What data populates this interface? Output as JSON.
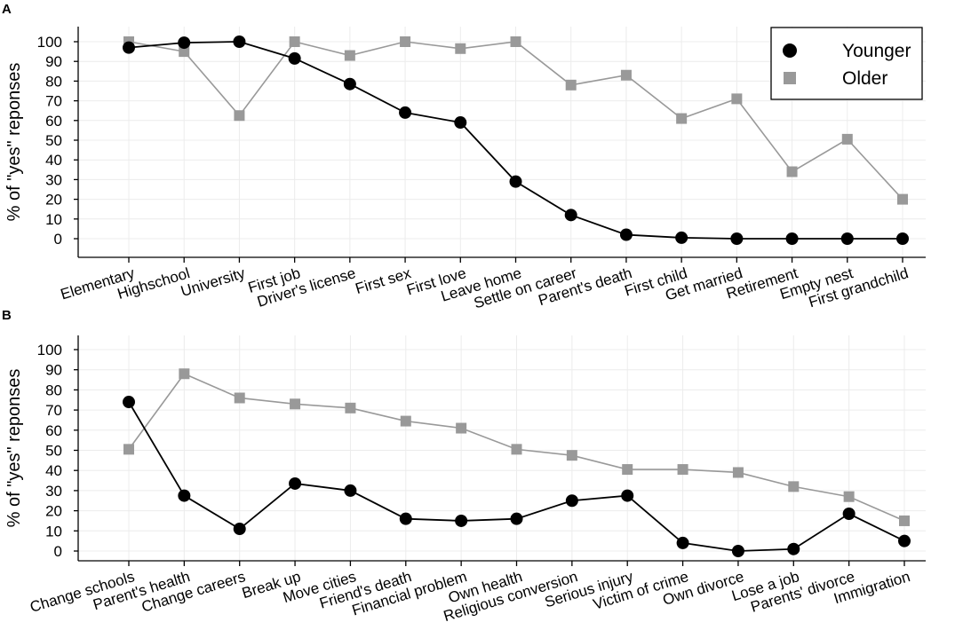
{
  "colors": {
    "younger": "#000000",
    "older": "#999999",
    "grid": "#ececec"
  },
  "legend": {
    "items": [
      "Younger",
      "Older"
    ],
    "markers": [
      "circle",
      "square"
    ],
    "placement": "top-right"
  },
  "chart_data": [
    {
      "panel": "A",
      "type": "line",
      "ylabel": "% of \"yes\" reponses",
      "ylim": [
        -8,
        108
      ],
      "yticks": [
        0,
        10,
        20,
        30,
        40,
        50,
        60,
        70,
        80,
        90,
        100
      ],
      "grid": true,
      "categories": [
        "Elementary",
        "Highschool",
        "University",
        "First job",
        "Driver's license",
        "First sex",
        "First love",
        "Leave home",
        "Settle on career",
        "Parent's death",
        "First child",
        "Get married",
        "Retirement",
        "Empty nest",
        "First grandchild"
      ],
      "series": [
        {
          "name": "Younger",
          "marker": "circle",
          "values": [
            97,
            99.5,
            100,
            91.5,
            78.5,
            64,
            59,
            29,
            12,
            2,
            0.5,
            0,
            0,
            0,
            0
          ]
        },
        {
          "name": "Older",
          "marker": "square",
          "values": [
            100,
            95,
            62.5,
            100,
            93,
            100,
            96.5,
            100,
            78,
            83,
            61,
            71,
            34,
            50.5,
            20
          ]
        }
      ]
    },
    {
      "panel": "B",
      "type": "line",
      "ylabel": "% of \"yes\" reponses",
      "ylim": [
        -4,
        105
      ],
      "yticks": [
        0,
        10,
        20,
        30,
        40,
        50,
        60,
        70,
        80,
        90,
        100
      ],
      "grid": true,
      "categories": [
        "Change schools",
        "Parent's health",
        "Change careers",
        "Break up",
        "Move cities",
        "Friend's death",
        "Financial problem",
        "Own health",
        "Religious conversion",
        "Serious injury",
        "Victim of crime",
        "Own divorce",
        "Lose a job",
        "Parents' divorce",
        "Immigration"
      ],
      "series": [
        {
          "name": "Younger",
          "marker": "circle",
          "values": [
            74,
            27.5,
            11,
            33.5,
            30,
            16,
            15,
            16,
            25,
            27.5,
            4,
            0,
            1,
            18.5,
            5
          ]
        },
        {
          "name": "Older",
          "marker": "square",
          "values": [
            50.5,
            88,
            76,
            73,
            71,
            64.5,
            61,
            50.5,
            47.5,
            40.5,
            40.5,
            39,
            32,
            27,
            15
          ]
        }
      ]
    }
  ]
}
